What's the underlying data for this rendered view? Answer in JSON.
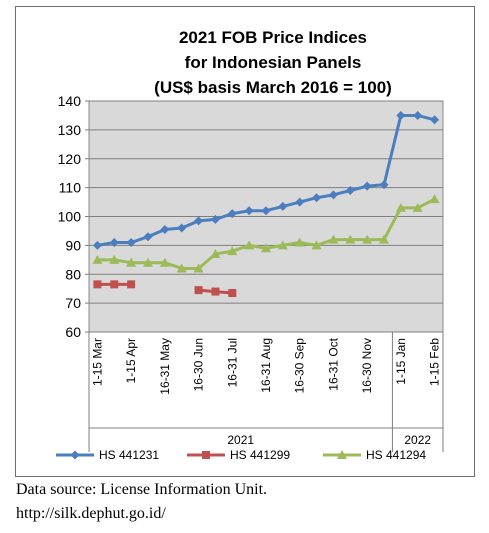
{
  "chart_data": {
    "type": "line",
    "title_lines": [
      "2021 FOB Price Indices",
      "for Indonesian Panels",
      "(US$ basis March 2016 = 100)"
    ],
    "ylim": [
      60,
      140
    ],
    "yticks": [
      60,
      70,
      80,
      90,
      100,
      110,
      120,
      130,
      140
    ],
    "grid": true,
    "categories": [
      "1-15 Mar",
      "",
      "1-15 Apr",
      "",
      "16-31 May",
      "",
      "16-30 Jun",
      "",
      "16-31 Jul",
      "",
      "16-31 Aug",
      "",
      "16-30 Sep",
      "",
      "16-31 Oct",
      "",
      "16-30 Nov",
      "",
      "1-15 Jan",
      "",
      "1-15 Feb"
    ],
    "groups": [
      {
        "label": "2021",
        "start": 0,
        "end": 17
      },
      {
        "label": "2022",
        "start": 18,
        "end": 20
      }
    ],
    "series": [
      {
        "name": "HS 441231",
        "color": "#4a7ebf",
        "marker": "diamond",
        "values": [
          90,
          91,
          91,
          93,
          95.5,
          96,
          98.5,
          99,
          101,
          102,
          102,
          103.5,
          105,
          106.5,
          107.5,
          109,
          110.5,
          111,
          135,
          135,
          133.5
        ]
      },
      {
        "name": "HS 441299",
        "color": "#c0504d",
        "marker": "square",
        "values": [
          76.5,
          76.5,
          76.5,
          null,
          null,
          null,
          74.5,
          74,
          73.5,
          null,
          null,
          null,
          null,
          null,
          null,
          null,
          null,
          null,
          null,
          null,
          null
        ]
      },
      {
        "name": "HS 441294",
        "color": "#9bbb59",
        "marker": "triangle",
        "values": [
          85,
          85,
          84,
          84,
          84,
          82,
          82,
          87,
          88,
          90,
          89,
          90,
          91,
          90,
          92,
          92,
          92,
          92,
          103,
          103,
          106
        ]
      }
    ],
    "legend_position": "bottom"
  },
  "source_lines": [
    "Data source: License Information Unit.",
    "http://silk.dephut.go.id/"
  ]
}
